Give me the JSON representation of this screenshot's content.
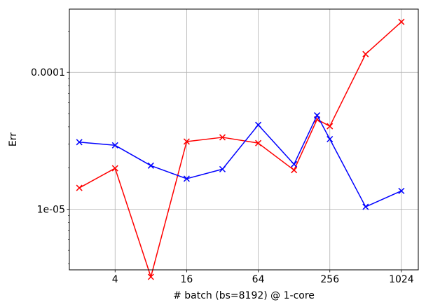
{
  "chart_data": {
    "type": "line",
    "title": "",
    "xlabel": "# batch (bs=8192) @ 1-core",
    "ylabel": "Err",
    "x_scale": "log2",
    "y_scale": "log10",
    "xlim": [
      1.65,
      1420
    ],
    "ylim": [
      3.6e-06,
      0.00029
    ],
    "x_ticks": [
      4,
      16,
      64,
      256,
      1024
    ],
    "x_tick_labels": [
      "4",
      "16",
      "64",
      "256",
      "1024"
    ],
    "y_ticks": [
      1e-05,
      0.0001
    ],
    "y_tick_labels": [
      "1e-05",
      "0.0001"
    ],
    "grid": true,
    "x": [
      2,
      4,
      8,
      16,
      32,
      64,
      128,
      200,
      256,
      512,
      1024
    ],
    "series": [
      {
        "color": "#ff0000",
        "marker": "x",
        "values": [
          1.43e-05,
          1.99e-05,
          3.2e-06,
          3.12e-05,
          3.35e-05,
          3.04e-05,
          1.93e-05,
          4.53e-05,
          4.04e-05,
          0.000136,
          0.000234
        ]
      },
      {
        "color": "#0000ff",
        "marker": "x",
        "values": [
          3.09e-05,
          2.93e-05,
          2.08e-05,
          1.67e-05,
          1.96e-05,
          4.13e-05,
          2.13e-05,
          4.85e-05,
          3.25e-05,
          1.04e-05,
          1.36e-05
        ]
      }
    ]
  }
}
